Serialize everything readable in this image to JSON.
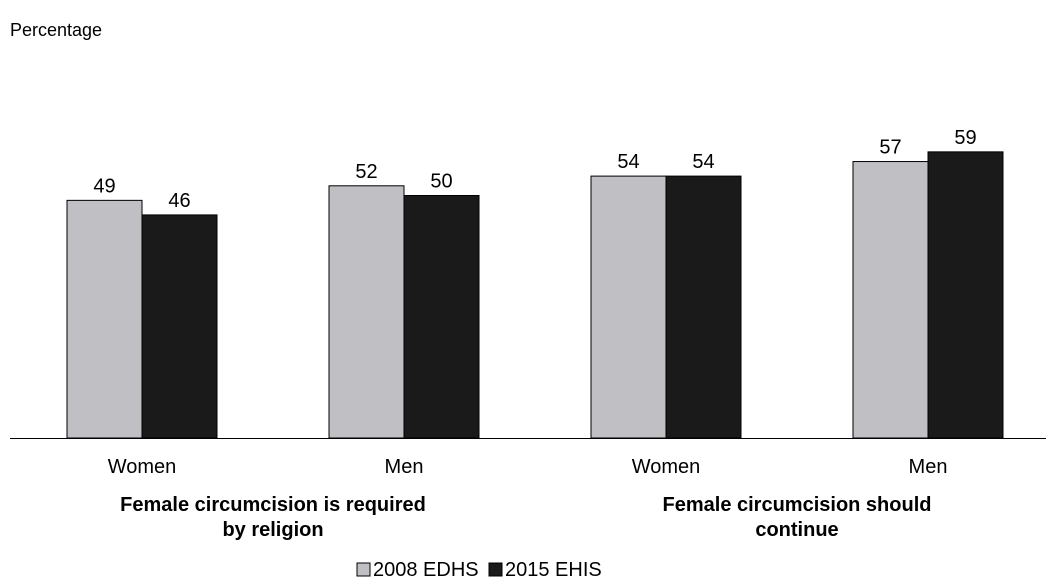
{
  "chart_data": {
    "type": "bar",
    "ylabel": "Percentage",
    "ylim": [
      0,
      100
    ],
    "grid": false,
    "legend_position": "bottom",
    "categories": [
      "Women",
      "Men",
      "Women",
      "Men"
    ],
    "groups": [
      {
        "label": "Female circumcision is required by religion",
        "label_lines": [
          "Female circumcision is required",
          "by religion"
        ],
        "category_indices": [
          0,
          1
        ]
      },
      {
        "label": "Female circumcision should continue",
        "label_lines": [
          "Female circumcision should",
          "continue"
        ],
        "category_indices": [
          2,
          3
        ]
      }
    ],
    "series": [
      {
        "name": "2008 EDHS",
        "color": "#c0c0c4",
        "values": [
          49,
          52,
          54,
          57
        ]
      },
      {
        "name": "2015 EHIS",
        "color": "#1a1a1a",
        "values": [
          46,
          50,
          54,
          59
        ]
      }
    ]
  }
}
